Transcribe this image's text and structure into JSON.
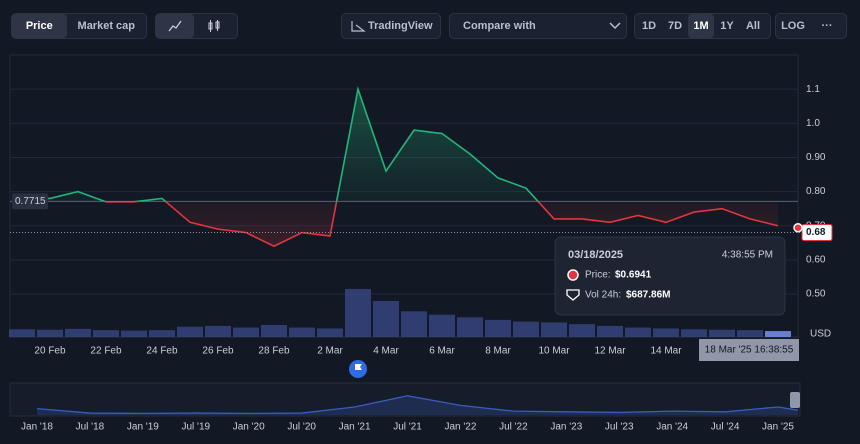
{
  "toolbar": {
    "price": "Price",
    "market_cap": "Market cap",
    "tradingview": "TradingView",
    "compare": "Compare with",
    "ranges": [
      "1D",
      "7D",
      "1M",
      "1Y",
      "All"
    ],
    "log": "LOG",
    "more": "···"
  },
  "tooltip": {
    "date": "03/18/2025",
    "time": "4:38:55 PM",
    "price_label": "Price:",
    "price": {
      "value": 0.6941,
      "label": "$0.6941"
    },
    "volume_label": "Vol 24h:",
    "volume": {
      "value": 687.86,
      "label": "$687.86M"
    }
  },
  "chart_data": {
    "type": "line",
    "categories": [
      null,
      "20 Feb",
      null,
      "22 Feb",
      null,
      "24 Feb",
      null,
      "26 Feb",
      null,
      "28 Feb",
      null,
      "2 Mar",
      null,
      "4 Mar",
      null,
      "6 Mar",
      null,
      "8 Mar",
      null,
      "10 Mar",
      null,
      "12 Mar",
      null,
      "14 Mar",
      null,
      null,
      null,
      null
    ],
    "values": [
      0.78,
      0.78,
      0.8,
      0.77,
      0.77,
      0.78,
      0.71,
      0.69,
      0.68,
      0.64,
      0.68,
      0.67,
      1.1,
      0.86,
      0.98,
      0.97,
      0.91,
      0.84,
      0.81,
      0.72,
      0.72,
      0.71,
      0.73,
      0.71,
      0.74,
      0.75,
      0.72,
      0.7
    ],
    "baseline": 0.7715,
    "current_price": 0.68,
    "cursor_label": "18 Mar '25 16:38:55",
    "up_color": "#22b57a",
    "down_color": "#e2353d",
    "ylim": [
      0.38,
      1.2
    ],
    "yticks": [
      {
        "value": 0.5,
        "label": "0.50"
      },
      {
        "value": 0.6,
        "label": "0.60"
      },
      {
        "value": 0.7,
        "label": "0.70"
      },
      {
        "value": 0.8,
        "label": "0.80"
      },
      {
        "value": 0.9,
        "label": "0.90"
      },
      {
        "value": 1.0,
        "label": "1.0"
      },
      1.1
    ],
    "y_unit": "USD",
    "grid": true,
    "volume": {
      "color": "#3a4a8a",
      "ylim": [
        0,
        7000
      ],
      "values": [
        900,
        850,
        950,
        800,
        750,
        800,
        1200,
        1300,
        1100,
        1400,
        1100,
        1000,
        5600,
        4200,
        3000,
        2600,
        2300,
        2000,
        1800,
        1700,
        1500,
        1300,
        1100,
        1000,
        900,
        850,
        800,
        700
      ]
    },
    "navigator": {
      "color": "#3b5bbf",
      "ylim": [
        0,
        100
      ],
      "categories": [
        "Jan '18",
        "Jul '18",
        "Jan '19",
        "Jul '19",
        "Jan '20",
        "Jul '20",
        "Jan '21",
        "Jul '21",
        "Jan '22",
        "Jul '22",
        "Jan '23",
        "Jul '23",
        "Jan '24",
        "Jul '24",
        "Jan '25",
        null
      ],
      "values": [
        20,
        6,
        5,
        6,
        5,
        6,
        25,
        60,
        30,
        12,
        10,
        8,
        12,
        10,
        25,
        15
      ]
    }
  }
}
